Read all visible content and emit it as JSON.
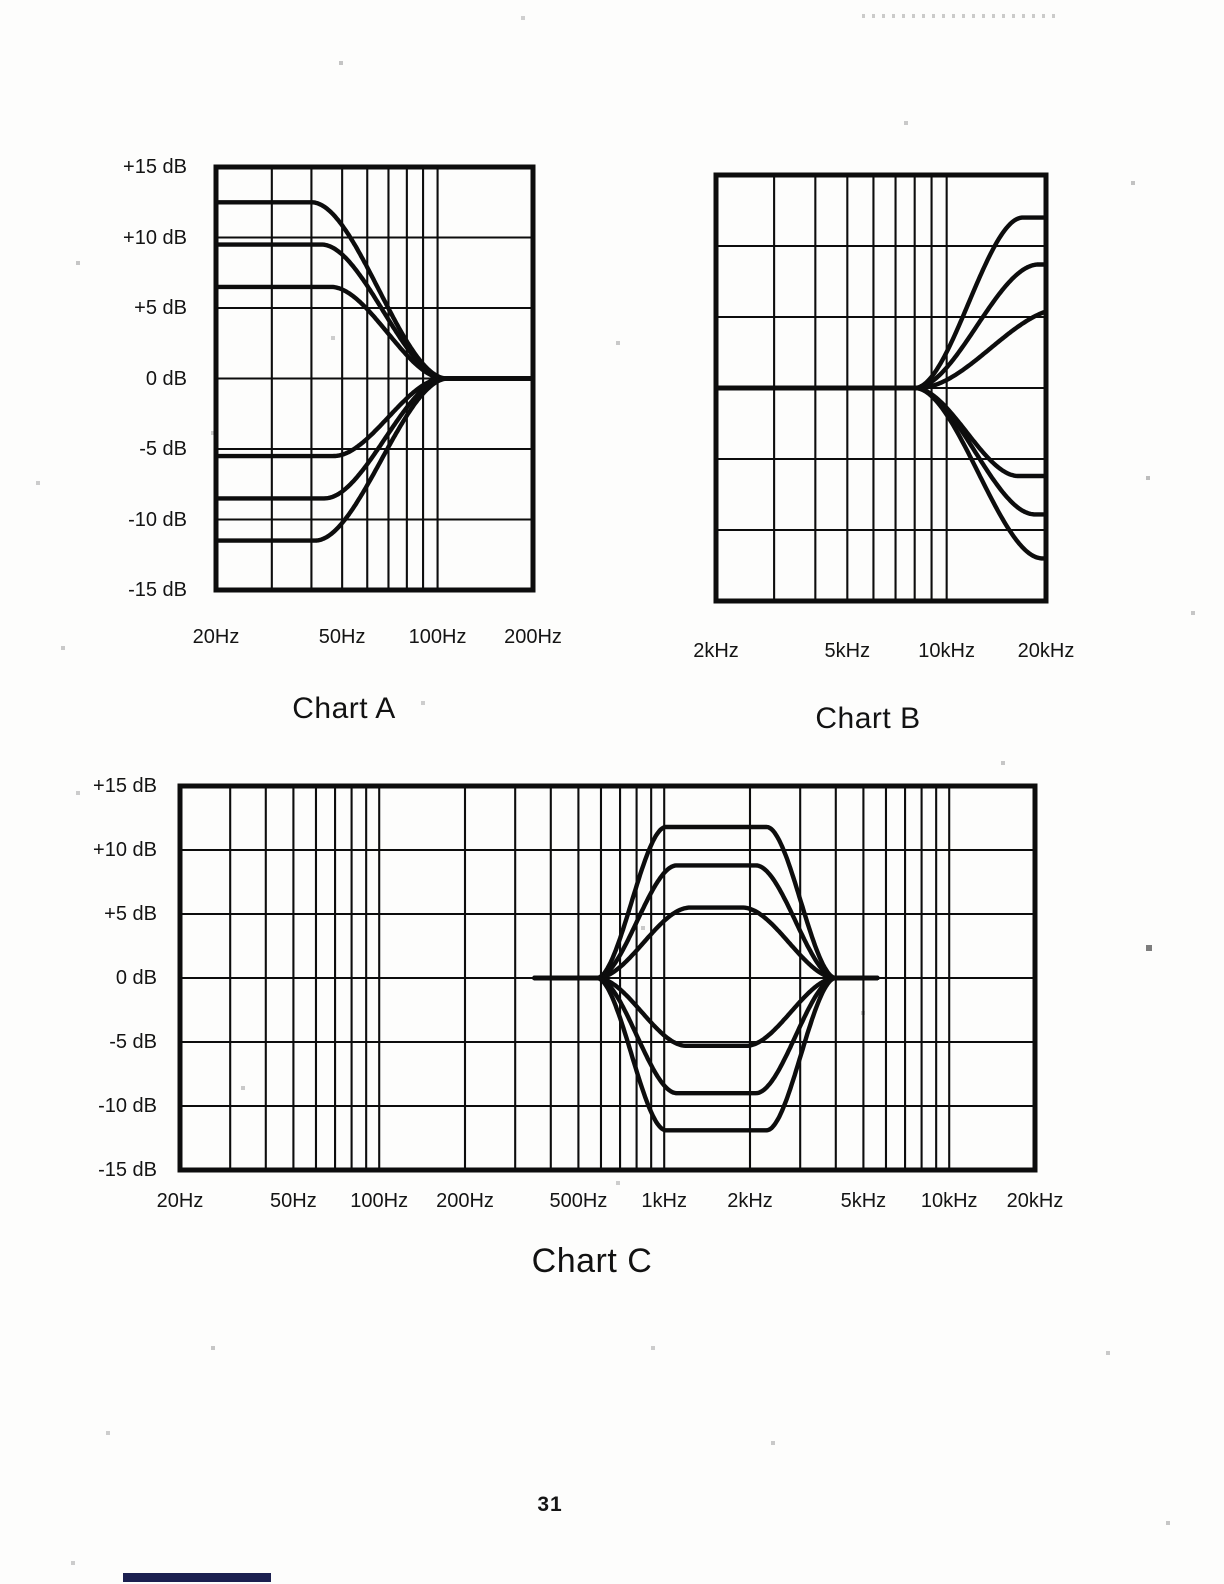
{
  "page": {
    "number": "31"
  },
  "chart_data": [
    {
      "id": "chart-a",
      "type": "line",
      "title": "Chart A",
      "description_of_depiction": "Bass (low-shelf) EQ boost/cut frequency response curves",
      "x_scale": "log",
      "x_unit": "Hz",
      "y_unit": "dB",
      "x_range_hz": [
        20,
        200
      ],
      "y_range_db": [
        -15,
        15
      ],
      "y_gridline_step_db": 5,
      "grid": true,
      "x_gridlines_hz": [
        20,
        30,
        40,
        50,
        60,
        70,
        80,
        90,
        100,
        200
      ],
      "x_tick_labels": [
        {
          "hz": 20,
          "label": "20Hz"
        },
        {
          "hz": 50,
          "label": "50Hz"
        },
        {
          "hz": 100,
          "label": "100Hz"
        },
        {
          "hz": 200,
          "label": "200Hz"
        }
      ],
      "y_tick_labels": [
        {
          "db": 15,
          "label": "+15 dB"
        },
        {
          "db": 10,
          "label": "+10 dB"
        },
        {
          "db": 5,
          "label": "+5 dB"
        },
        {
          "db": 0,
          "label": "0 dB"
        },
        {
          "db": -5,
          "label": "-5 dB"
        },
        {
          "db": -10,
          "label": "-10 dB"
        },
        {
          "db": -15,
          "label": "-15 dB"
        }
      ],
      "curve_domain_hz": [
        20,
        200
      ],
      "curves": [
        {
          "shape": "low-shelf",
          "gain_db": 12.5,
          "flat_until_hz": 40,
          "unity_at_hz": 107
        },
        {
          "shape": "low-shelf",
          "gain_db": 9.5,
          "flat_until_hz": 43,
          "unity_at_hz": 106
        },
        {
          "shape": "low-shelf",
          "gain_db": 6.5,
          "flat_until_hz": 46,
          "unity_at_hz": 105
        },
        {
          "shape": "low-shelf",
          "gain_db": -5.5,
          "flat_until_hz": 47,
          "unity_at_hz": 104
        },
        {
          "shape": "low-shelf",
          "gain_db": -8.5,
          "flat_until_hz": 44,
          "unity_at_hz": 106
        },
        {
          "shape": "low-shelf",
          "gain_db": -11.5,
          "flat_until_hz": 41,
          "unity_at_hz": 108
        }
      ]
    },
    {
      "id": "chart-b",
      "type": "line",
      "title": "Chart B",
      "description_of_depiction": "Treble (high-shelf) EQ boost/cut frequency response curves",
      "x_scale": "log",
      "x_unit": "Hz",
      "y_unit": "dB",
      "x_range_hz": [
        2000,
        20000
      ],
      "y_range_db": [
        -15,
        15
      ],
      "y_gridline_step_db": 5,
      "grid": true,
      "x_gridlines_hz": [
        2000,
        3000,
        4000,
        5000,
        6000,
        7000,
        8000,
        9000,
        10000,
        20000
      ],
      "x_tick_labels": [
        {
          "hz": 2000,
          "label": "2kHz"
        },
        {
          "hz": 5000,
          "label": "5kHz"
        },
        {
          "hz": 10000,
          "label": "10kHz"
        },
        {
          "hz": 20000,
          "label": "20kHz"
        }
      ],
      "y_tick_labels": [],
      "curve_domain_hz": [
        2000,
        20000
      ],
      "curves": [
        {
          "shape": "high-shelf",
          "gain_db": 12,
          "unity_until_hz": 8000,
          "full_gain_at_hz": 17000
        },
        {
          "shape": "high-shelf",
          "gain_db": 8.7,
          "unity_until_hz": 8000,
          "full_gain_at_hz": 19000
        },
        {
          "shape": "high-shelf",
          "gain_db": 5.6,
          "unity_until_hz": 8200,
          "full_gain_at_hz": 22500
        },
        {
          "shape": "high-shelf",
          "gain_db": -6.2,
          "unity_until_hz": 8000,
          "full_gain_at_hz": 16500
        },
        {
          "shape": "high-shelf",
          "gain_db": -8.9,
          "unity_until_hz": 8000,
          "full_gain_at_hz": 18500
        },
        {
          "shape": "high-shelf",
          "gain_db": -12,
          "unity_until_hz": 8000,
          "full_gain_at_hz": 19500
        }
      ]
    },
    {
      "id": "chart-c",
      "type": "line",
      "title": "Chart C",
      "description_of_depiction": "Midrange (bell/peaking) EQ boost/cut frequency response curves centered near 1.5kHz",
      "x_scale": "log",
      "x_unit": "Hz",
      "y_unit": "dB",
      "x_range_hz": [
        20,
        20000
      ],
      "y_range_db": [
        -15,
        15
      ],
      "y_gridline_step_db": 5,
      "grid": true,
      "x_gridlines_hz": [
        20,
        30,
        40,
        50,
        60,
        70,
        80,
        90,
        100,
        200,
        300,
        400,
        500,
        600,
        700,
        800,
        900,
        1000,
        2000,
        3000,
        4000,
        5000,
        6000,
        7000,
        8000,
        9000,
        10000,
        20000
      ],
      "x_tick_labels": [
        {
          "hz": 20,
          "label": "20Hz"
        },
        {
          "hz": 50,
          "label": "50Hz"
        },
        {
          "hz": 100,
          "label": "100Hz"
        },
        {
          "hz": 200,
          "label": "200Hz"
        },
        {
          "hz": 500,
          "label": "500Hz"
        },
        {
          "hz": 1000,
          "label": "1kHz"
        },
        {
          "hz": 2000,
          "label": "2kHz"
        },
        {
          "hz": 5000,
          "label": "5kHz"
        },
        {
          "hz": 10000,
          "label": "10kHz"
        },
        {
          "hz": 20000,
          "label": "20kHz"
        }
      ],
      "y_tick_labels": [
        {
          "db": 15,
          "label": "+15 dB"
        },
        {
          "db": 10,
          "label": "+10 dB"
        },
        {
          "db": 5,
          "label": "+5 dB"
        },
        {
          "db": 0,
          "label": "0 dB"
        },
        {
          "db": -5,
          "label": "-5 dB"
        },
        {
          "db": -10,
          "label": "-10 dB"
        },
        {
          "db": -15,
          "label": "-15 dB"
        }
      ],
      "curve_domain_hz": [
        350,
        5600
      ],
      "curves": [
        {
          "shape": "bell",
          "gain_db": 11.8,
          "zero_low_hz": 580,
          "zero_high_hz": 4000,
          "plateau": 0.42
        },
        {
          "shape": "bell",
          "gain_db": 8.8,
          "zero_low_hz": 580,
          "zero_high_hz": 4000,
          "plateau": 0.33
        },
        {
          "shape": "bell",
          "gain_db": 5.5,
          "zero_low_hz": 580,
          "zero_high_hz": 4000,
          "plateau": 0.22
        },
        {
          "shape": "bell",
          "gain_db": -5.3,
          "zero_low_hz": 580,
          "zero_high_hz": 4000,
          "plateau": 0.25
        },
        {
          "shape": "bell",
          "gain_db": -9.0,
          "zero_low_hz": 580,
          "zero_high_hz": 4000,
          "plateau": 0.33
        },
        {
          "shape": "bell",
          "gain_db": -11.9,
          "zero_low_hz": 580,
          "zero_high_hz": 4000,
          "plateau": 0.42
        }
      ]
    }
  ],
  "ink_color": "#0d0d0d",
  "footer_bar_color": "#1c2050"
}
